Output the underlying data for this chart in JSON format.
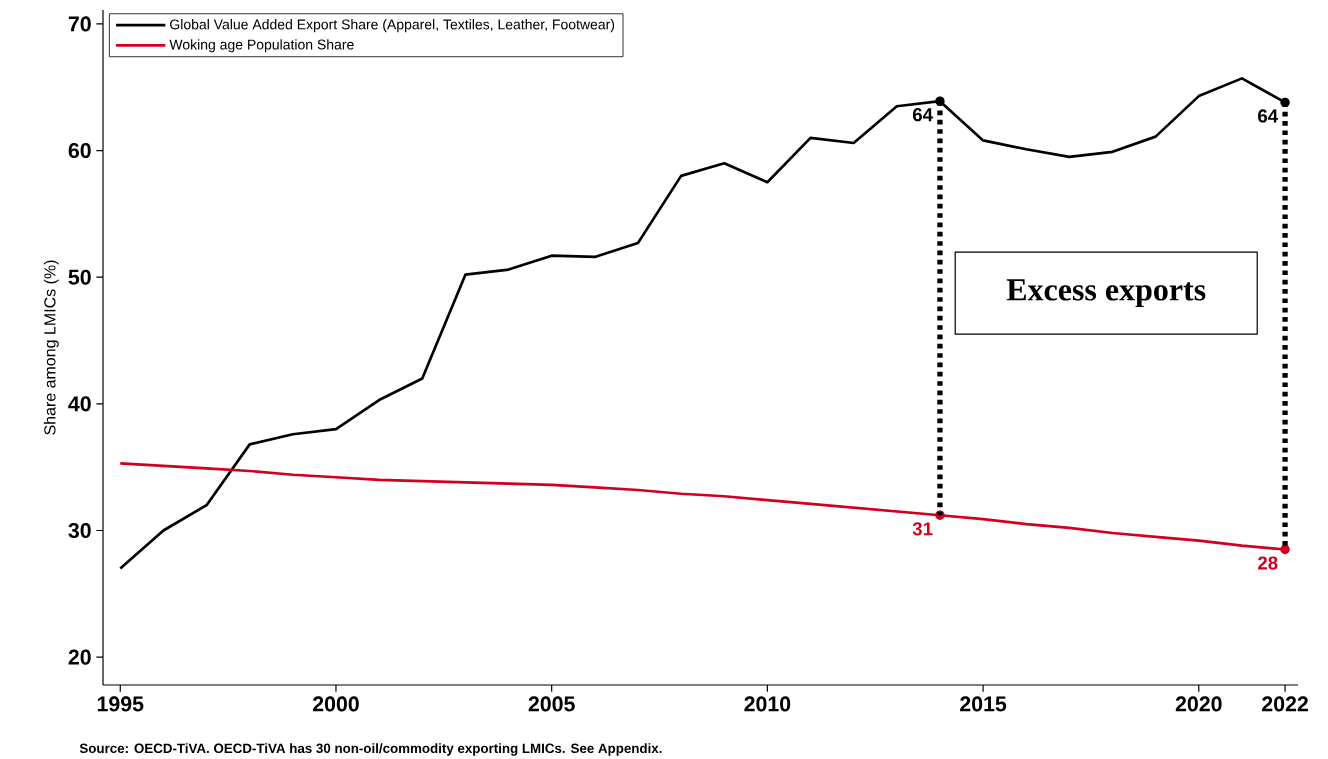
{
  "chart_data": {
    "type": "line",
    "ylabel": "Share among LMICs (%)",
    "x": [
      1995,
      1996,
      1997,
      1998,
      1999,
      2000,
      2001,
      2002,
      2003,
      2004,
      2005,
      2006,
      2007,
      2008,
      2009,
      2010,
      2011,
      2012,
      2013,
      2014,
      2015,
      2016,
      2017,
      2018,
      2019,
      2020,
      2021,
      2022
    ],
    "series": [
      {
        "name": "Global Value Added Export Share (Apparel, Textiles, Leather, Footwear)",
        "color": "#000000",
        "values": [
          27,
          30,
          32,
          36.8,
          37.6,
          38,
          40.3,
          42,
          50.2,
          50.6,
          51.7,
          51.6,
          52.7,
          58,
          59,
          57.5,
          61,
          60.6,
          63.5,
          63.9,
          60.8,
          60.1,
          59.5,
          59.9,
          61.1,
          64.3,
          65.7,
          63.8
        ],
        "value_labels": [
          null,
          null,
          null,
          null,
          null,
          null,
          null,
          null,
          null,
          null,
          null,
          null,
          null,
          null,
          null,
          null,
          null,
          null,
          null,
          "64",
          null,
          null,
          null,
          null,
          null,
          null,
          null,
          "64"
        ]
      },
      {
        "name": "Woking age Population Share",
        "color": "#d2001e",
        "values": [
          35.3,
          35.1,
          34.9,
          34.7,
          34.4,
          34.2,
          34.0,
          33.9,
          33.8,
          33.7,
          33.6,
          33.4,
          33.2,
          32.9,
          32.7,
          32.4,
          32.1,
          31.8,
          31.5,
          31.2,
          30.9,
          30.5,
          30.2,
          29.8,
          29.5,
          29.2,
          28.8,
          28.5
        ],
        "value_labels": [
          null,
          null,
          null,
          null,
          null,
          null,
          null,
          null,
          null,
          null,
          null,
          null,
          null,
          null,
          null,
          null,
          null,
          null,
          null,
          "31",
          null,
          null,
          null,
          null,
          null,
          null,
          null,
          "28"
        ]
      }
    ],
    "ref_lines": [
      {
        "axis": "x",
        "value": 2014,
        "color": "#000000",
        "line_style": "dotted"
      },
      {
        "axis": "x",
        "value": 2022,
        "color": "#000000",
        "line_style": "dotted"
      }
    ],
    "xlim": [
      1994.6,
      2022.3
    ],
    "ylim": [
      17.8,
      71.1
    ],
    "xticks": [
      1995,
      2000,
      2005,
      2010,
      2015,
      2020,
      2022
    ],
    "yticks": [
      20,
      30,
      40,
      50,
      60,
      70
    ],
    "legend": "top left",
    "grid": false,
    "annotations": [
      "Excess exports",
      "Source: OECD-TiVA. OECD-TiVA has 30 non-oil/commodity exporting LMICs. See Appendix."
    ]
  }
}
